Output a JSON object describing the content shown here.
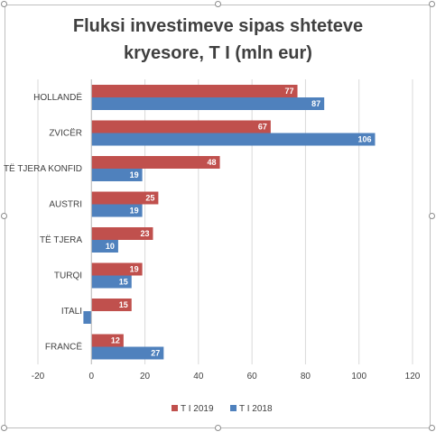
{
  "chart_data": {
    "type": "bar",
    "orientation": "horizontal",
    "title_line1": "Fluksi investimeve sipas shteteve",
    "title_line2": "kryesore, T I (mln eur)",
    "categories": [
      "HOLLANDË",
      "ZVICËR",
      "TË TJERA KONFID",
      "AUSTRI",
      "TË TJERA",
      "TURQI",
      "ITALI",
      "FRANCË"
    ],
    "series": [
      {
        "name": "T I 2019",
        "color": "#c0504d",
        "values": [
          77,
          67,
          48,
          25,
          23,
          19,
          15,
          12
        ]
      },
      {
        "name": "T I 2018",
        "color": "#4f81bd",
        "values": [
          87,
          106,
          19,
          19,
          10,
          15,
          -3,
          27
        ]
      }
    ],
    "data_labels": [
      [
        "77",
        "67",
        "48",
        "25",
        "23",
        "19",
        "15",
        "12"
      ],
      [
        "87",
        "106",
        "19",
        "19",
        "10",
        "15",
        "",
        "27"
      ]
    ],
    "xlim": [
      -20,
      120
    ],
    "xticks": [
      "-20",
      "0",
      "20",
      "40",
      "60",
      "80",
      "100",
      "120"
    ],
    "grid": true,
    "legend_position": "bottom"
  }
}
